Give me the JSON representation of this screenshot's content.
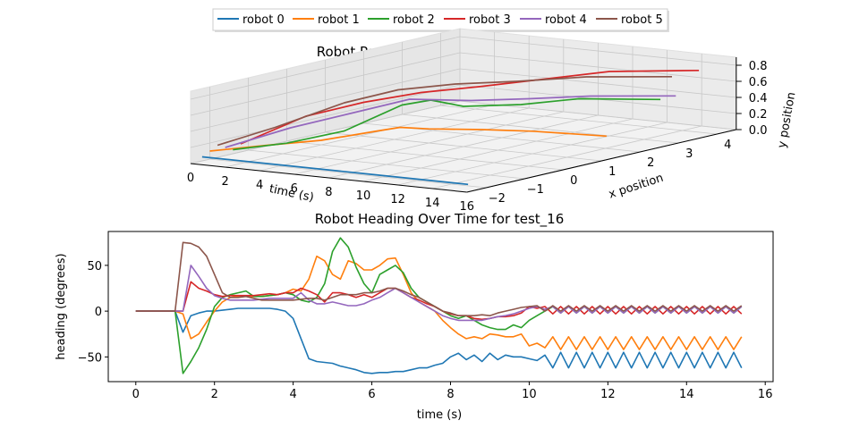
{
  "legend": {
    "entries": [
      {
        "name": "robot 0",
        "color": "#1f77b4"
      },
      {
        "name": "robot 1",
        "color": "#ff7f0e"
      },
      {
        "name": "robot 2",
        "color": "#2ca02c"
      },
      {
        "name": "robot 3",
        "color": "#d62728"
      },
      {
        "name": "robot 4",
        "color": "#9467bd"
      },
      {
        "name": "robot 5",
        "color": "#8c564b"
      }
    ]
  },
  "chart_data": [
    {
      "type": "line",
      "projection": "3d",
      "title": "Robot Position Over Time for test_16",
      "xlabel": "time (s)",
      "ylabel": "x position",
      "zlabel": "y position",
      "xticks": [
        "0",
        "2",
        "4",
        "6",
        "8",
        "10",
        "12",
        "14",
        "16"
      ],
      "yticks": [
        "−2",
        "−1",
        "0",
        "1",
        "2",
        "3",
        "4"
      ],
      "zticks": [
        "0.0",
        "0.2",
        "0.4",
        "0.6",
        "0.8"
      ],
      "xlim": [
        0,
        16
      ],
      "ylim": [
        -2.5,
        4.5
      ],
      "zlim": [
        0,
        0.9
      ],
      "grid": true,
      "series": [
        {
          "name": "robot 0",
          "points": [
            [
              0,
              -2.2,
              0.05
            ],
            [
              2,
              -2.2,
              0.05
            ],
            [
              4,
              -2.2,
              0.05
            ],
            [
              6,
              -2.2,
              0.05
            ],
            [
              8,
              -2.2,
              0.05
            ],
            [
              10,
              -2.2,
              0.05
            ],
            [
              12,
              -2.2,
              0.05
            ],
            [
              14,
              -2.2,
              0.05
            ],
            [
              15.4,
              -2.2,
              0.05
            ]
          ]
        },
        {
          "name": "robot 1",
          "points": [
            [
              0,
              -2,
              0.1
            ],
            [
              2,
              -1.4,
              0.15
            ],
            [
              4,
              -0.9,
              0.2
            ],
            [
              6,
              -0.4,
              0.3
            ],
            [
              7,
              -0.2,
              0.35
            ],
            [
              8,
              0.1,
              0.32
            ],
            [
              10,
              0.6,
              0.3
            ],
            [
              12,
              1.0,
              0.28
            ],
            [
              15.4,
              1.4,
              0.25
            ]
          ]
        },
        {
          "name": "robot 2",
          "points": [
            [
              0,
              -1.4,
              0.05
            ],
            [
              2,
              -0.9,
              0.12
            ],
            [
              4,
              -0.3,
              0.25
            ],
            [
              6,
              0.3,
              0.55
            ],
            [
              7,
              0.6,
              0.6
            ],
            [
              8,
              1.0,
              0.5
            ],
            [
              10,
              1.6,
              0.5
            ],
            [
              12,
              2.2,
              0.55
            ],
            [
              15.4,
              2.8,
              0.55
            ]
          ]
        },
        {
          "name": "robot 3",
          "points": [
            [
              0,
              -1.2,
              0.1
            ],
            [
              2,
              -0.4,
              0.4
            ],
            [
              4,
              0.2,
              0.55
            ],
            [
              6,
              0.8,
              0.65
            ],
            [
              8,
              1.4,
              0.7
            ],
            [
              10,
              2.2,
              0.75
            ],
            [
              12,
              3.0,
              0.8
            ],
            [
              15.4,
              3.8,
              0.8
            ]
          ]
        },
        {
          "name": "robot 4",
          "points": [
            [
              0,
              -1.6,
              0.1
            ],
            [
              2,
              -0.8,
              0.3
            ],
            [
              4,
              -0.1,
              0.45
            ],
            [
              6,
              0.5,
              0.6
            ],
            [
              8,
              1.2,
              0.55
            ],
            [
              10,
              1.8,
              0.55
            ],
            [
              12,
              2.5,
              0.55
            ],
            [
              15.4,
              3.2,
              0.55
            ]
          ]
        },
        {
          "name": "robot 5",
          "points": [
            [
              0,
              -1.8,
              0.15
            ],
            [
              2,
              -1.2,
              0.35
            ],
            [
              4,
              -0.3,
              0.6
            ],
            [
              6,
              0.2,
              0.75
            ],
            [
              8,
              0.8,
              0.8
            ],
            [
              10,
              1.5,
              0.8
            ],
            [
              12,
              2.4,
              0.8
            ],
            [
              15.4,
              3.1,
              0.8
            ]
          ]
        }
      ]
    },
    {
      "type": "line",
      "title": "Robot Heading Over Time for test_16",
      "xlabel": "time (s)",
      "ylabel": "heading (degrees)",
      "xlim": [
        -0.7,
        16.2
      ],
      "ylim": [
        -77,
        87
      ],
      "xticks": [
        0,
        2,
        4,
        6,
        8,
        10,
        12,
        14,
        16
      ],
      "yticks": [
        -50,
        0,
        50
      ],
      "grid": false,
      "x": [
        0,
        0.2,
        0.4,
        0.6,
        0.8,
        1.0,
        1.2,
        1.4,
        1.6,
        1.8,
        2.0,
        2.2,
        2.4,
        2.6,
        2.8,
        3.0,
        3.2,
        3.4,
        3.6,
        3.8,
        4.0,
        4.2,
        4.4,
        4.6,
        4.8,
        5.0,
        5.2,
        5.4,
        5.6,
        5.8,
        6.0,
        6.2,
        6.4,
        6.6,
        6.8,
        7.0,
        7.2,
        7.4,
        7.6,
        7.8,
        8.0,
        8.2,
        8.4,
        8.6,
        8.8,
        9.0,
        9.2,
        9.4,
        9.6,
        9.8,
        10.0,
        10.2,
        10.4,
        10.6,
        10.8,
        11.0,
        11.2,
        11.4,
        11.6,
        11.8,
        12.0,
        12.2,
        12.4,
        12.6,
        12.8,
        13.0,
        13.2,
        13.4,
        13.6,
        13.8,
        14.0,
        14.2,
        14.4,
        14.6,
        14.8,
        15.0,
        15.2,
        15.4
      ],
      "series": [
        {
          "name": "robot 0",
          "values": [
            0,
            0,
            0,
            0,
            0,
            0,
            -23,
            -5,
            -2,
            0,
            0,
            1,
            2,
            3,
            3,
            3,
            3,
            3,
            2,
            0,
            -8,
            -30,
            -52,
            -55,
            -56,
            -57,
            -60,
            -62,
            -64,
            -67,
            -68,
            -67,
            -67,
            -66,
            -66,
            -64,
            -62,
            -62,
            -59,
            -57,
            -50,
            -46,
            -53,
            -48,
            -55,
            -46,
            -53,
            -48,
            -50,
            -50,
            -52,
            -54,
            -48,
            -62,
            -45,
            -62,
            -45,
            -62,
            -45,
            -62,
            -45,
            -62,
            -45,
            -62,
            -45,
            -62,
            -45,
            -62,
            -45,
            -62,
            -45,
            -62,
            -45,
            -62,
            -45,
            -62,
            -45,
            -62
          ]
        },
        {
          "name": "robot 1",
          "values": [
            0,
            0,
            0,
            0,
            0,
            0,
            -3,
            -30,
            -25,
            -12,
            0,
            10,
            15,
            16,
            16,
            16,
            16,
            17,
            18,
            20,
            24,
            22,
            35,
            60,
            55,
            40,
            35,
            55,
            52,
            45,
            45,
            50,
            57,
            58,
            40,
            20,
            10,
            5,
            0,
            -10,
            -18,
            -25,
            -30,
            -28,
            -30,
            -25,
            -26,
            -28,
            -28,
            -25,
            -38,
            -35,
            -40,
            -28,
            -42,
            -28,
            -42,
            -28,
            -42,
            -28,
            -42,
            -28,
            -42,
            -28,
            -42,
            -28,
            -42,
            -28,
            -42,
            -28,
            -42,
            -28,
            -42,
            -28,
            -42,
            -28,
            -42,
            -28
          ]
        },
        {
          "name": "robot 2",
          "values": [
            0,
            0,
            0,
            0,
            0,
            0,
            -68,
            -55,
            -40,
            -20,
            5,
            15,
            18,
            20,
            22,
            16,
            16,
            17,
            18,
            20,
            18,
            12,
            10,
            15,
            30,
            65,
            80,
            70,
            48,
            30,
            20,
            40,
            45,
            50,
            42,
            25,
            15,
            10,
            5,
            0,
            -5,
            -8,
            -5,
            -10,
            -15,
            -18,
            -20,
            -20,
            -15,
            -18,
            -10,
            -5,
            0,
            5,
            -2,
            5,
            -2,
            5,
            -2,
            5,
            -2,
            5,
            -2,
            5,
            -2,
            5,
            -2,
            5,
            -2,
            5,
            -2,
            5,
            -2,
            5,
            -2,
            5,
            -2,
            5
          ]
        },
        {
          "name": "robot 3",
          "values": [
            0,
            0,
            0,
            0,
            0,
            0,
            0,
            32,
            25,
            22,
            18,
            16,
            17,
            17,
            17,
            17,
            18,
            19,
            18,
            20,
            20,
            25,
            22,
            18,
            10,
            20,
            20,
            18,
            15,
            18,
            15,
            20,
            25,
            25,
            20,
            15,
            12,
            8,
            5,
            0,
            -3,
            -5,
            -5,
            -8,
            -9,
            -8,
            -6,
            -6,
            -5,
            -2,
            5,
            3,
            5,
            -3,
            5,
            -3,
            5,
            -3,
            5,
            -3,
            5,
            -3,
            5,
            -3,
            5,
            -3,
            5,
            -3,
            5,
            -3,
            5,
            -3,
            5,
            -3,
            5,
            -3,
            5,
            -3
          ]
        },
        {
          "name": "robot 4",
          "values": [
            0,
            0,
            0,
            0,
            0,
            0,
            0,
            50,
            38,
            25,
            17,
            14,
            12,
            12,
            12,
            12,
            13,
            14,
            14,
            14,
            14,
            20,
            12,
            8,
            8,
            10,
            8,
            6,
            6,
            8,
            12,
            15,
            20,
            25,
            20,
            15,
            10,
            5,
            0,
            -5,
            -8,
            -10,
            -10,
            -10,
            -10,
            -8,
            -6,
            -5,
            -3,
            0,
            3,
            5,
            2,
            5,
            -2,
            5,
            -2,
            5,
            -2,
            5,
            -2,
            5,
            -2,
            5,
            -2,
            5,
            -2,
            5,
            -2,
            5,
            -2,
            5,
            -2,
            5,
            -2,
            5,
            -2,
            5
          ]
        },
        {
          "name": "robot 5",
          "values": [
            0,
            0,
            0,
            0,
            0,
            0,
            75,
            74,
            70,
            60,
            40,
            20,
            15,
            15,
            16,
            14,
            12,
            12,
            12,
            12,
            12,
            13,
            14,
            14,
            12,
            15,
            18,
            18,
            18,
            20,
            20,
            22,
            25,
            25,
            22,
            18,
            15,
            10,
            5,
            0,
            -2,
            -5,
            -5,
            -5,
            -4,
            -5,
            -2,
            0,
            2,
            4,
            5,
            6,
            0,
            6,
            0,
            6,
            0,
            6,
            0,
            6,
            0,
            6,
            0,
            6,
            0,
            6,
            0,
            6,
            0,
            6,
            0,
            6,
            0,
            6,
            0,
            6,
            0,
            6
          ]
        }
      ]
    }
  ]
}
